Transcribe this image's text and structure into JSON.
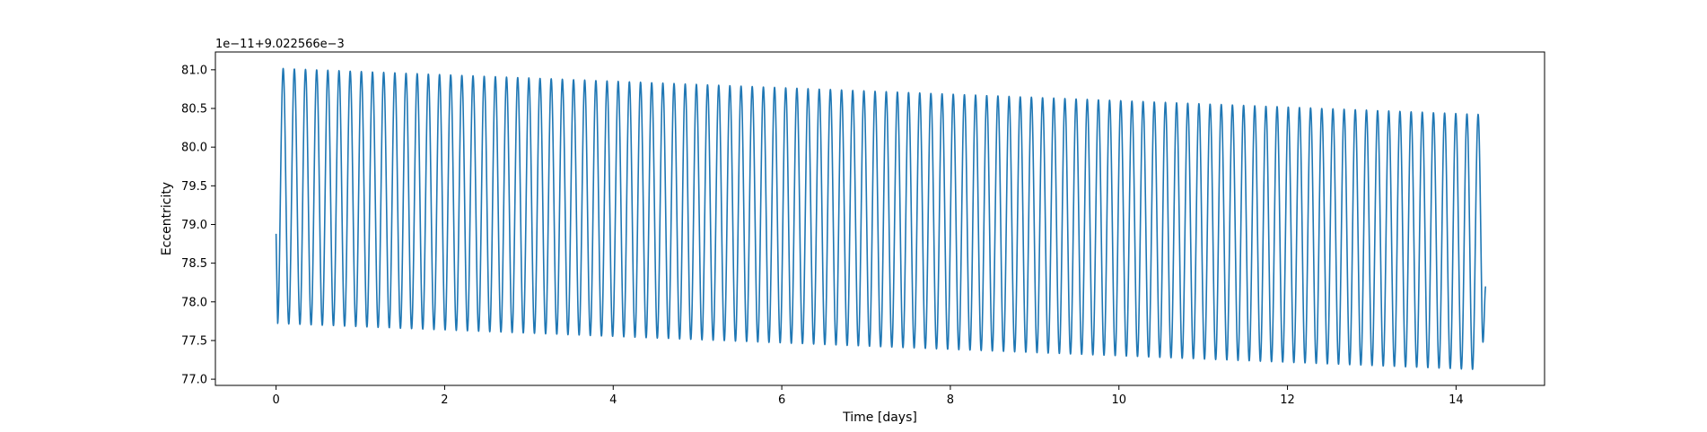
{
  "chart_data": {
    "type": "line",
    "title": "",
    "xlabel": "Time [days]",
    "ylabel": "Eccentricity",
    "y_offset_label": "1e−11+9.022566e−3",
    "xlim": [
      -0.72,
      15.05
    ],
    "ylim": [
      76.92,
      81.23
    ],
    "x_ticks": [
      0,
      2,
      4,
      6,
      8,
      10,
      12,
      14
    ],
    "x_tick_labels": [
      "0",
      "2",
      "4",
      "6",
      "8",
      "10",
      "12",
      "14"
    ],
    "y_ticks": [
      77.0,
      77.5,
      78.0,
      78.5,
      79.0,
      79.5,
      80.0,
      80.5,
      81.0
    ],
    "y_tick_labels": [
      "77.0",
      "77.5",
      "78.0",
      "78.5",
      "79.0",
      "79.5",
      "80.0",
      "80.5",
      "81.0"
    ],
    "grid": false,
    "legend": "none",
    "series": [
      {
        "color": "#1f77b4",
        "x_start": 0.0,
        "x_end": 14.35,
        "period_days": 0.1325,
        "start_value": 78.88,
        "end_value": 78.2,
        "max_start": 81.02,
        "max_end": 80.42,
        "min_start": 77.72,
        "min_end": 77.12
      }
    ]
  }
}
